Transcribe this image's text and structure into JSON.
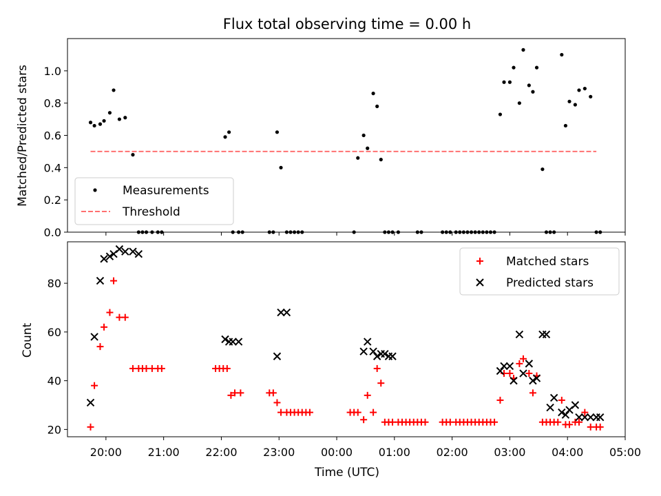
{
  "figure": {
    "title": "Flux total observing time = 0.00 h",
    "xlabel": "Time (UTC)"
  },
  "chart_data": [
    {
      "type": "scatter",
      "ylabel": "Matched/Predicted stars",
      "xlim": [
        "19:20",
        "05:00"
      ],
      "ylim": [
        0,
        1.2
      ],
      "yticks": [
        0.0,
        0.2,
        0.4,
        0.6,
        0.8,
        1.0
      ],
      "ytick_labels": [
        "0.0",
        "0.2",
        "0.4",
        "0.6",
        "0.8",
        "1.0"
      ],
      "grid": false,
      "legend": "lower-left",
      "series": [
        {
          "name": "Measurements",
          "color": "#000000",
          "marker": "dot",
          "x": [
            "19:44",
            "19:48",
            "19:54",
            "19:58",
            "20:04",
            "20:08",
            "20:14",
            "20:20",
            "20:28",
            "20:34",
            "20:38",
            "20:42",
            "20:48",
            "20:54",
            "20:58",
            "22:04",
            "22:08",
            "22:12",
            "22:18",
            "22:22",
            "22:50",
            "22:54",
            "22:58",
            "23:02",
            "23:08",
            "23:12",
            "23:16",
            "23:20",
            "23:24",
            "00:18",
            "00:22",
            "00:28",
            "00:32",
            "00:38",
            "00:42",
            "00:46",
            "00:50",
            "00:54",
            "00:58",
            "01:04",
            "01:24",
            "01:28",
            "01:50",
            "01:54",
            "01:58",
            "02:04",
            "02:08",
            "02:12",
            "02:16",
            "02:20",
            "02:24",
            "02:28",
            "02:32",
            "02:36",
            "02:40",
            "02:44",
            "02:50",
            "02:54",
            "03:00",
            "03:04",
            "03:10",
            "03:14",
            "03:20",
            "03:24",
            "03:28",
            "03:34",
            "03:38",
            "03:42",
            "03:46",
            "03:54",
            "03:58",
            "04:02",
            "04:08",
            "04:12",
            "04:18",
            "04:24",
            "04:30",
            "04:34"
          ],
          "y": [
            0.68,
            0.66,
            0.67,
            0.69,
            0.74,
            0.88,
            0.7,
            0.71,
            0.48,
            0.0,
            0.0,
            0.0,
            0.0,
            0.0,
            0.0,
            0.59,
            0.62,
            0.0,
            0.0,
            0.0,
            0.0,
            0.0,
            0.62,
            0.4,
            0.0,
            0.0,
            0.0,
            0.0,
            0.0,
            0.0,
            0.46,
            0.6,
            0.52,
            0.86,
            0.78,
            0.45,
            0.0,
            0.0,
            0.0,
            0.0,
            0.0,
            0.0,
            0.0,
            0.0,
            0.0,
            0.0,
            0.0,
            0.0,
            0.0,
            0.0,
            0.0,
            0.0,
            0.0,
            0.0,
            0.0,
            0.0,
            0.73,
            0.93,
            0.93,
            1.02,
            0.8,
            1.13,
            0.91,
            0.87,
            1.02,
            0.39,
            0.0,
            0.0,
            0.0,
            1.1,
            0.66,
            0.81,
            0.79,
            0.88,
            0.89,
            0.84,
            0.0,
            0.0
          ]
        },
        {
          "name": "Threshold",
          "color": "#ff7070",
          "style": "dashed",
          "x": [
            "19:44",
            "04:30"
          ],
          "y": [
            0.5,
            0.5
          ]
        }
      ]
    },
    {
      "type": "scatter",
      "ylabel": "Count",
      "xlim": [
        "19:20",
        "05:00"
      ],
      "ylim": [
        17,
        97
      ],
      "yticks": [
        20,
        40,
        60,
        80
      ],
      "ytick_labels": [
        "20",
        "40",
        "60",
        "80"
      ],
      "xticks": [
        "20:00",
        "21:00",
        "22:00",
        "23:00",
        "00:00",
        "01:00",
        "02:00",
        "03:00",
        "04:00",
        "05:00"
      ],
      "grid": false,
      "legend": "top-right",
      "series": [
        {
          "name": "Matched stars",
          "color": "#ff0000",
          "marker": "plus",
          "x": [
            "19:44",
            "19:48",
            "19:54",
            "19:58",
            "20:04",
            "20:08",
            "20:14",
            "20:20",
            "20:28",
            "20:34",
            "20:38",
            "20:42",
            "20:48",
            "20:54",
            "20:58",
            "21:54",
            "21:58",
            "22:02",
            "22:06",
            "22:10",
            "22:14",
            "22:20",
            "22:50",
            "22:54",
            "22:58",
            "23:02",
            "23:08",
            "23:12",
            "23:16",
            "23:20",
            "23:24",
            "23:28",
            "23:32",
            "00:14",
            "00:18",
            "00:22",
            "00:28",
            "00:32",
            "00:38",
            "00:42",
            "00:46",
            "00:50",
            "00:54",
            "00:58",
            "01:04",
            "01:08",
            "01:12",
            "01:16",
            "01:20",
            "01:24",
            "01:28",
            "01:32",
            "01:50",
            "01:54",
            "01:58",
            "02:04",
            "02:08",
            "02:12",
            "02:16",
            "02:20",
            "02:24",
            "02:28",
            "02:32",
            "02:36",
            "02:40",
            "02:44",
            "02:50",
            "02:54",
            "03:00",
            "03:04",
            "03:10",
            "03:14",
            "03:20",
            "03:24",
            "03:28",
            "03:34",
            "03:38",
            "03:42",
            "03:46",
            "03:50",
            "03:54",
            "03:58",
            "04:02",
            "04:08",
            "04:12",
            "04:18",
            "04:24",
            "04:30",
            "04:34"
          ],
          "y": [
            21,
            38,
            54,
            62,
            68,
            81,
            66,
            66,
            45,
            45,
            45,
            45,
            45,
            45,
            45,
            45,
            45,
            45,
            45,
            34,
            35,
            35,
            35,
            35,
            31,
            27,
            27,
            27,
            27,
            27,
            27,
            27,
            27,
            27,
            27,
            27,
            24,
            34,
            27,
            45,
            39,
            23,
            23,
            23,
            23,
            23,
            23,
            23,
            23,
            23,
            23,
            23,
            23,
            23,
            23,
            23,
            23,
            23,
            23,
            23,
            23,
            23,
            23,
            23,
            23,
            23,
            32,
            43,
            43,
            41,
            47,
            49,
            43,
            35,
            42,
            23,
            23,
            23,
            23,
            23,
            32,
            22,
            22,
            23,
            23,
            27,
            21,
            21,
            21
          ]
        },
        {
          "name": "Predicted stars",
          "color": "#000000",
          "marker": "x",
          "x": [
            "19:44",
            "19:48",
            "19:54",
            "19:58",
            "20:04",
            "20:08",
            "20:14",
            "20:20",
            "20:28",
            "20:34",
            "22:04",
            "22:08",
            "22:12",
            "22:18",
            "22:58",
            "23:02",
            "23:08",
            "00:28",
            "00:32",
            "00:38",
            "00:42",
            "00:46",
            "00:50",
            "00:54",
            "00:58",
            "02:50",
            "02:54",
            "03:00",
            "03:04",
            "03:10",
            "03:14",
            "03:20",
            "03:24",
            "03:28",
            "03:34",
            "03:38",
            "03:42",
            "03:46",
            "03:54",
            "03:58",
            "04:02",
            "04:08",
            "04:12",
            "04:18",
            "04:24",
            "04:30",
            "04:34"
          ],
          "y": [
            31,
            58,
            81,
            90,
            91,
            92,
            94,
            93,
            93,
            92,
            57,
            56,
            56,
            56,
            50,
            68,
            68,
            52,
            56,
            52,
            50,
            51,
            51,
            50,
            50,
            44,
            46,
            46,
            40,
            59,
            43,
            47,
            40,
            41,
            59,
            59,
            29,
            33,
            27,
            26,
            28,
            30,
            25,
            25,
            25,
            25,
            25
          ]
        }
      ]
    }
  ]
}
